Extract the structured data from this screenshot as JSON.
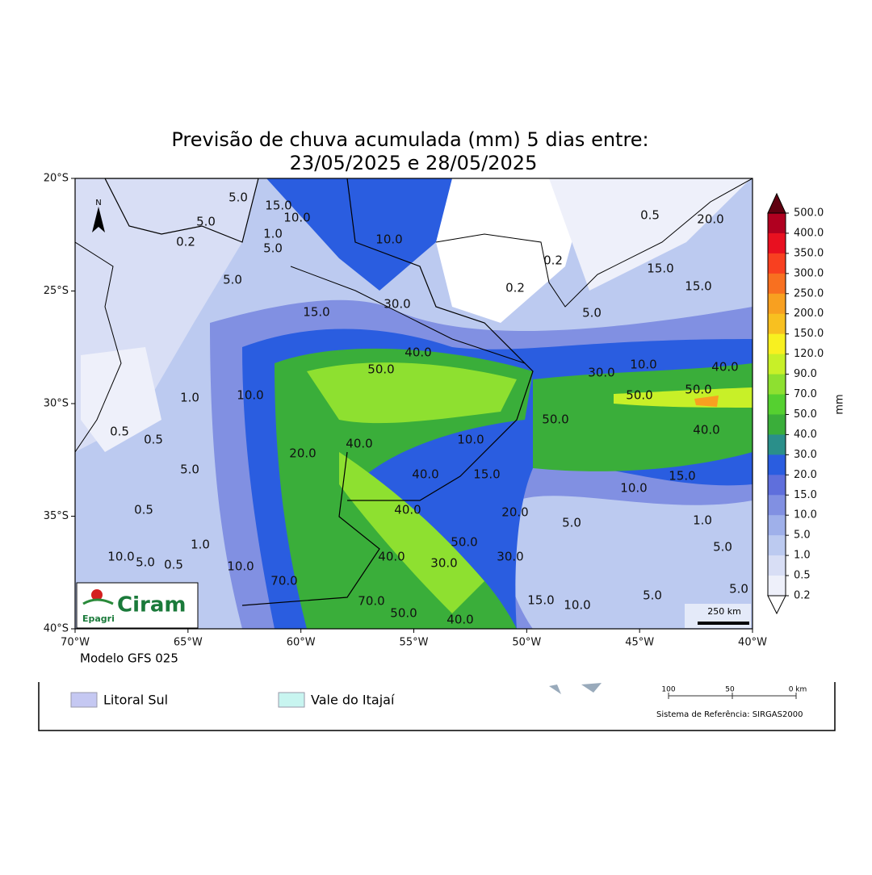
{
  "title_lines": [
    "Previsão de chuva acumulada (mm) 5 dias  entre:",
    "23/05/2025 e 28/05/2025"
  ],
  "lat_labels": [
    "20°S",
    "25°S",
    "30°S",
    "35°S",
    "40°S"
  ],
  "lon_labels": [
    "70°W",
    "65°W",
    "60°W",
    "55°W",
    "50°W",
    "45°W",
    "40°W"
  ],
  "colorbar": {
    "unit": "mm",
    "levels": [
      "500.0",
      "400.0",
      "350.0",
      "300.0",
      "250.0",
      "200.0",
      "150.0",
      "120.0",
      "90.0",
      "70.0",
      "50.0",
      "40.0",
      "30.0",
      "20.0",
      "15.0",
      "10.0",
      "5.0",
      "1.0",
      "0.5",
      "0.2"
    ],
    "colors": [
      "#b00020",
      "#e81020",
      "#f84020",
      "#f87020",
      "#f8a020",
      "#f8c020",
      "#f8f020",
      "#c8f028",
      "#8ee030",
      "#55d030",
      "#3aae3a",
      "#2a8f8a",
      "#2a5de0",
      "#5f6fdc",
      "#8190e2",
      "#9fb0ea",
      "#bccaf0",
      "#d8def5",
      "#eef0fa"
    ],
    "over_color": "#600010",
    "under_color": "#ffffff"
  },
  "contour_labels": [
    "5.0",
    "15.0",
    "10.0",
    "5.0",
    "1.0",
    "5.0",
    "10.0",
    "0.2",
    "5.0",
    "30.0",
    "15.0",
    "40.0",
    "50.0",
    "0.2",
    "0.2",
    "0.5",
    "20.0",
    "15.0",
    "15.0",
    "5.0",
    "10.0",
    "30.0",
    "50.0",
    "50.0",
    "40.0",
    "40.0",
    "50.0",
    "1.0",
    "0.5",
    "0.5",
    "10.0",
    "20.0",
    "10.0",
    "40.0",
    "5.0",
    "40.0",
    "15.0",
    "10.0",
    "15.0",
    "40.0",
    "20.0",
    "5.0",
    "1.0",
    "5.0",
    "5.0",
    "5.0",
    "0.5",
    "1.0",
    "10.0",
    "10.0",
    "0.5",
    "5.0",
    "70.0",
    "50.0",
    "40.0",
    "30.0",
    "30.0",
    "70.0",
    "50.0",
    "40.0",
    "15.0",
    "10.0",
    "0.2"
  ],
  "north": "N",
  "logo": {
    "name": "Ciram",
    "org": "Epagri"
  },
  "scale_label": "250 km",
  "model": "Modelo GFS 025",
  "legend": {
    "items": [
      "Litoral Sul",
      "Vale do Itajaí"
    ],
    "scale_ticks": [
      "100",
      "50",
      "0 km"
    ],
    "reference": "Sistema de Referência: SIRGAS2000"
  }
}
